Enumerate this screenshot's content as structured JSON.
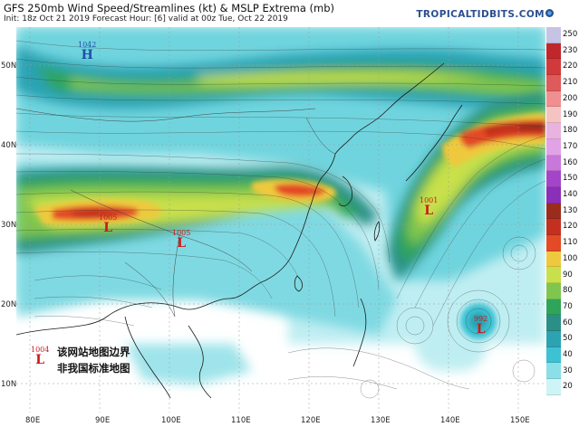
{
  "header": {
    "title": "GFS 250mb Wind Speed/Streamlines (kt) & MSLP Extrema (mb)",
    "subtitle": "Init: 18z Oct 21 2019   Forecast Hour: [6]   valid at 00z Tue, Oct 22 2019",
    "site": "TROPICALTIDBITS.COM"
  },
  "axes": {
    "lat_labels": [
      "50N",
      "40N",
      "30N",
      "20N",
      "10N"
    ],
    "lon_labels": [
      "80E",
      "90E",
      "100E",
      "110E",
      "120E",
      "130E",
      "140E",
      "150E"
    ]
  },
  "colorbar": {
    "labels": [
      "250",
      "230",
      "220",
      "210",
      "200",
      "190",
      "180",
      "170",
      "160",
      "150",
      "140",
      "130",
      "120",
      "110",
      "100",
      "90",
      "80",
      "70",
      "60",
      "50",
      "40",
      "30",
      "20"
    ],
    "colors": [
      "#c7c3e4",
      "#c0272d",
      "#d13a3a",
      "#df5a5a",
      "#ef8f8f",
      "#f6c3c3",
      "#e8b3e0",
      "#e2a2e6",
      "#c778d9",
      "#a444c8",
      "#8a2fb8",
      "#9a2c1e",
      "#c4301f",
      "#e34a26",
      "#eec93e",
      "#c8e04c",
      "#7fc64e",
      "#2ea55a",
      "#2a8f87",
      "#2ba3b3",
      "#3dc2d3",
      "#8ae0e6",
      "#cff4f6"
    ]
  },
  "pressure_centers": [
    {
      "type": "high",
      "value": "1042",
      "symbol": "H"
    },
    {
      "type": "low",
      "value": "1005",
      "symbol": "L"
    },
    {
      "type": "low",
      "value": "1005",
      "symbol": "L"
    },
    {
      "type": "low",
      "value": "1001",
      "symbol": "L"
    },
    {
      "type": "low",
      "value": "1004",
      "symbol": "L"
    },
    {
      "type": "low",
      "value": "992",
      "symbol": "L"
    }
  ],
  "notice": {
    "line1": "该网站地图边界",
    "line2": "非我国标准地图"
  }
}
